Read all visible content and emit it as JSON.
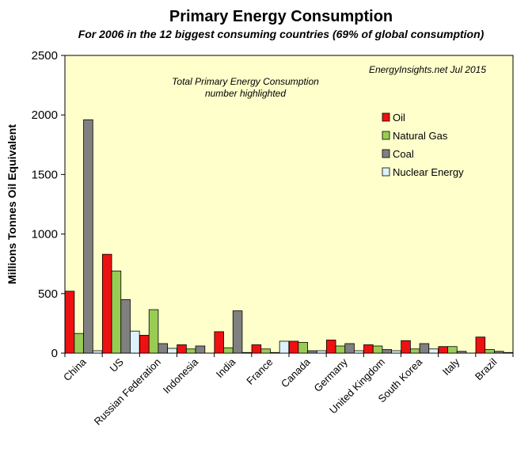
{
  "chart_data": {
    "type": "bar",
    "title": "Primary Energy Consumption",
    "subtitle": "For 2006 in the 12 biggest consuming countries (69% of global consumption)",
    "ylabel": "Millions Tonnes Oil Equivalent",
    "xlabel": "",
    "ylim": [
      0,
      2500
    ],
    "yticks": [
      0,
      500,
      1000,
      1500,
      2000,
      2500
    ],
    "grid": false,
    "legend_position": "right",
    "annotations": {
      "source": "EnergyInsights.net  Jul 2015",
      "note_line1": "Total Primary Energy Consumption",
      "note_line2": "number highlighted"
    },
    "categories": [
      "China",
      "US",
      "Russian Federation",
      "Indonesia",
      "India",
      "France",
      "Canada",
      "Germany",
      "United Kingdom",
      "South Korea",
      "Italy",
      "Brazil"
    ],
    "series": [
      {
        "name": "Oil",
        "color": "#ee1111",
        "values": [
          520,
          830,
          150,
          70,
          180,
          70,
          100,
          110,
          70,
          105,
          55,
          135
        ]
      },
      {
        "name": "Natural Gas",
        "color": "#99cc55",
        "values": [
          165,
          690,
          365,
          35,
          45,
          35,
          90,
          60,
          60,
          35,
          55,
          30
        ]
      },
      {
        "name": "Coal",
        "color": "#808080",
        "values": [
          1960,
          450,
          80,
          60,
          355,
          5,
          20,
          80,
          30,
          80,
          15,
          15
        ]
      },
      {
        "name": "Nuclear Energy",
        "color": "#ddf2fa",
        "values": [
          20,
          185,
          40,
          0,
          5,
          100,
          20,
          20,
          20,
          35,
          0,
          5
        ]
      }
    ]
  }
}
